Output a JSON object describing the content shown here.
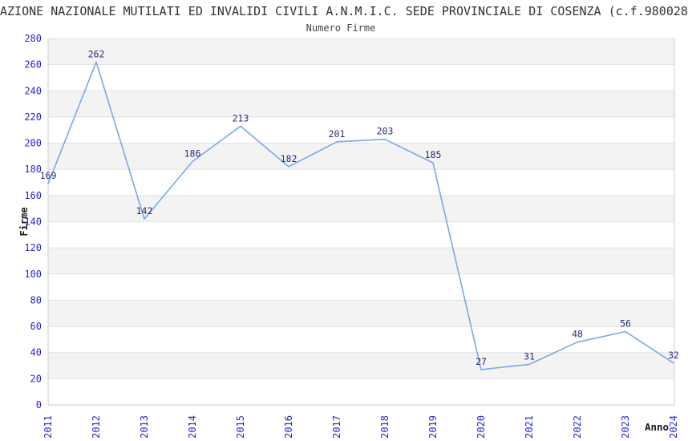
{
  "header": {
    "title": "AZIONE NAZIONALE MUTILATI ED INVALIDI CIVILI A.N.M.I.C. SEDE PROVINCIALE DI COSENZA (c.f.980028",
    "subtitle": "Numero Firme"
  },
  "chart_data": {
    "type": "line",
    "title": "Numero Firme",
    "categories": [
      "2011",
      "2012",
      "2013",
      "2014",
      "2015",
      "2016",
      "2017",
      "2018",
      "2019",
      "2020",
      "2021",
      "2022",
      "2023",
      "2024"
    ],
    "values": [
      169,
      262,
      142,
      186,
      213,
      182,
      201,
      203,
      185,
      27,
      31,
      48,
      56,
      32
    ],
    "xlabel": "Anno",
    "ylabel": "Firme",
    "ylim": [
      0,
      280
    ],
    "ytick_step": 20,
    "grid": "horizontal",
    "alternating_bands": true,
    "legend": "none",
    "colors": {
      "line": "#79a9e6",
      "tick_label": "#2727cd",
      "data_label": "#2a2a7d",
      "band": "#f3f3f3",
      "grid": "#e2e2e2",
      "axis": "#cccccc",
      "axis_title": "#1a1a1a"
    }
  }
}
